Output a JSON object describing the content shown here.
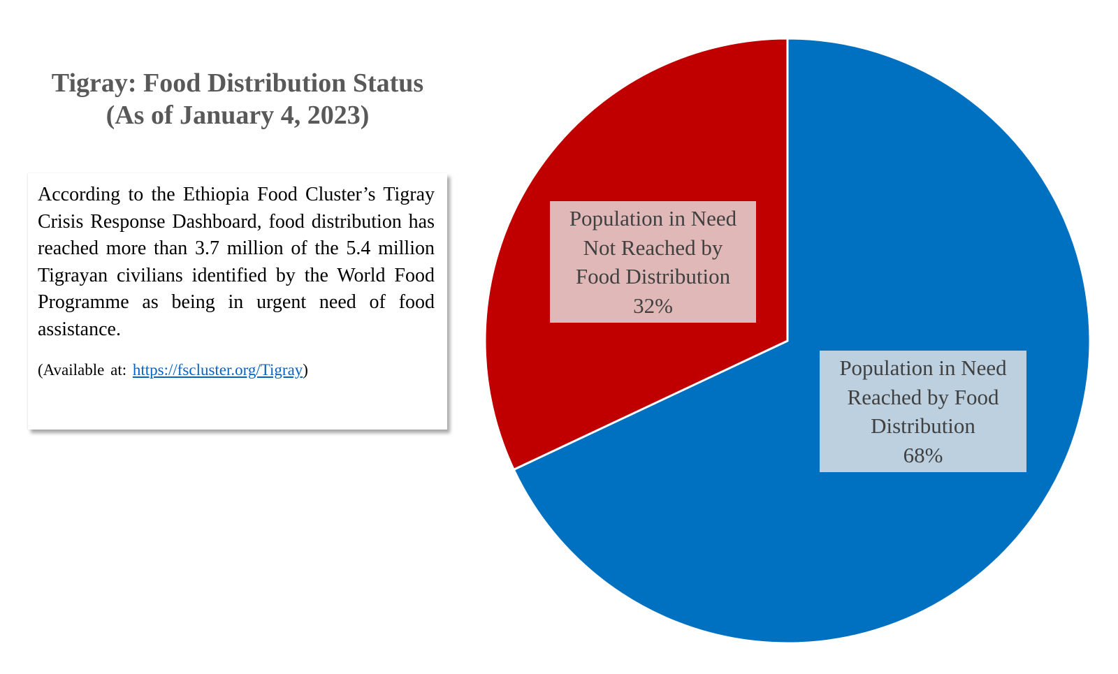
{
  "title": {
    "line1": "Tigray: Food Distribution Status",
    "line2": "(As of January 4, 2023)"
  },
  "info": {
    "paragraph": "According to the Ethiopia Food Cluster’s Tigray Crisis Response Dashboard, food distribution has reached more than 3.7 million of the 5.4 million Tigrayan civilians identified by the World Food Programme as being in urgent need of food assistance.",
    "source_prefix": "(Available at: ",
    "source_link": "https://fscluster.org/Tigray",
    "source_suffix": ")"
  },
  "chart_data": {
    "type": "pie",
    "title": "Tigray: Food Distribution Status (As of January 4, 2023)",
    "start_angle_deg": 0,
    "direction": "clockwise",
    "slices": [
      {
        "name": "Population in Need Reached by Food Distribution",
        "value": 68,
        "color": "#0070c0",
        "label_lines": [
          "Population in Need",
          "Reached by Food",
          "Distribution",
          "68%"
        ]
      },
      {
        "name": "Population in Need Not Reached by Food Distribution",
        "value": 32,
        "color": "#c00000",
        "label_lines": [
          "Population in Need",
          "Not Reached by",
          "Food Distribution",
          "32%"
        ]
      }
    ]
  }
}
